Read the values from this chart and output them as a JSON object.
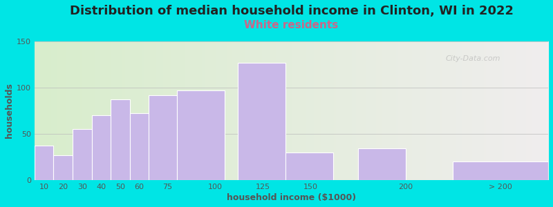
{
  "title": "Distribution of median household income in Clinton, WI in 2022",
  "subtitle": "White residents",
  "xlabel": "household income ($1000)",
  "ylabel": "households",
  "bar_lefts": [
    5,
    15,
    25,
    35,
    45,
    55,
    65,
    80,
    112,
    137,
    175,
    225
  ],
  "bar_widths": [
    10,
    10,
    10,
    10,
    10,
    10,
    15,
    25,
    25,
    25,
    25,
    50
  ],
  "bar_values": [
    37,
    27,
    55,
    70,
    87,
    72,
    92,
    97,
    127,
    30,
    34,
    20
  ],
  "tick_positions": [
    10,
    20,
    30,
    40,
    50,
    60,
    75,
    100,
    125,
    150,
    200,
    250
  ],
  "tick_labels": [
    "10",
    "20",
    "30",
    "40",
    "50",
    "60",
    "75",
    "100",
    "125",
    "150",
    "200",
    "> 200"
  ],
  "bar_color": "#c9b8e8",
  "bar_edgecolor": "#ffffff",
  "xlim": [
    5,
    275
  ],
  "ylim": [
    0,
    150
  ],
  "yticks": [
    0,
    50,
    100,
    150
  ],
  "background_color": "#00e5e5",
  "plot_bg_gradient_left": "#d8edcc",
  "plot_bg_gradient_right": "#f0eeee",
  "title_fontsize": 13,
  "subtitle_fontsize": 11,
  "subtitle_color": "#cc6688",
  "axis_label_fontsize": 9,
  "watermark": "City-Data.com"
}
